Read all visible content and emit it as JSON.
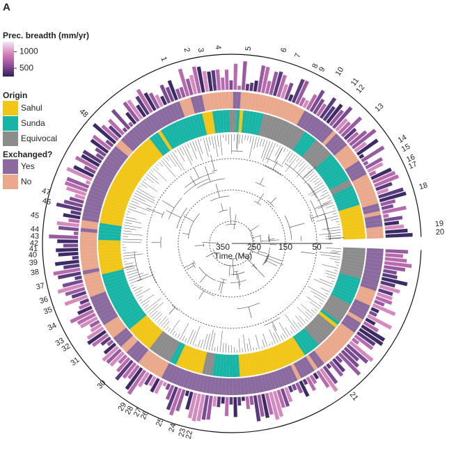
{
  "panel": "A",
  "legend": {
    "breadth": {
      "title": "Prec. breadth (mm/yr)",
      "range": [
        250,
        1300
      ],
      "ticks": [
        1000,
        500
      ]
    },
    "origin": {
      "title": "Origin",
      "items": [
        {
          "label": "Sahul",
          "color": "#f2c617"
        },
        {
          "label": "Sunda",
          "color": "#18b5a6"
        },
        {
          "label": "Equivocal",
          "color": "#8c8c8c"
        }
      ]
    },
    "exchanged": {
      "title": "Exchanged?",
      "items": [
        {
          "label": "Yes",
          "color": "#8b6a9f"
        },
        {
          "label": "No",
          "color": "#eaa98c"
        }
      ]
    }
  },
  "time_axis": {
    "label": "Time (Ma)",
    "ticks": [
      350,
      250,
      150,
      50
    ]
  },
  "clades": [
    "1",
    "2",
    "3",
    "4",
    "5",
    "6",
    "7",
    "8",
    "9",
    "10",
    "11",
    "12",
    "13",
    "14",
    "15",
    "16",
    "17",
    "18",
    "19",
    "20",
    "21",
    "22",
    "23",
    "24",
    "25",
    "26",
    "27",
    "28",
    "29",
    "30",
    "31",
    "32",
    "33",
    "34",
    "35",
    "36",
    "37",
    "38",
    "39",
    "40",
    "41",
    "42",
    "43",
    "44",
    "45",
    "46",
    "47",
    "48"
  ]
}
